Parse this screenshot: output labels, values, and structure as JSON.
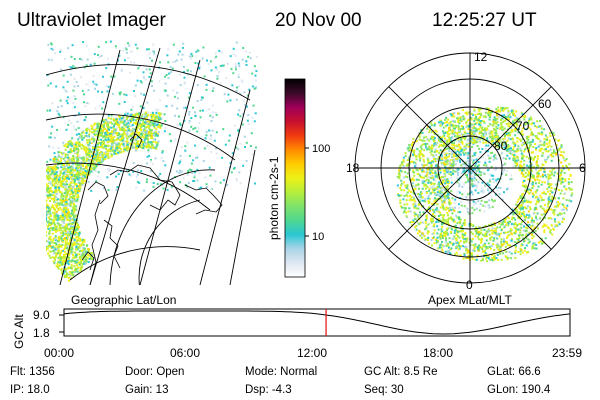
{
  "header": {
    "instrument": "Ultraviolet Imager",
    "date": "20 Nov 00",
    "time": "12:25:27 UT"
  },
  "colorbar": {
    "unit_label": "photon cm-2s-1",
    "ticks": [
      "100",
      "10"
    ],
    "scale": "log",
    "range": [
      2,
      1000
    ],
    "gradient": [
      "#ffffff",
      "#dfe8f2",
      "#a9d4e6",
      "#2bc7d4",
      "#4fd78f",
      "#7fe36b",
      "#b6ee3a",
      "#eef018",
      "#ffcc00",
      "#ff8a00",
      "#f03a10",
      "#c8102e",
      "#a0005a",
      "#3a0a2a",
      "#000000"
    ]
  },
  "geo_map": {
    "label": "Geographic Lat/Lon"
  },
  "apex_map": {
    "label": "Apex MLat/MLT",
    "mlt_labels": [
      "12",
      "18",
      "6",
      "0"
    ],
    "lat_labels": [
      "60",
      "70",
      "80"
    ]
  },
  "timeline": {
    "ylabel": "GC Alt",
    "y_ticks": [
      "9.0",
      "1.8"
    ],
    "x_ticks": [
      "00:00",
      "06:00",
      "12:00",
      "18:00",
      "23:59"
    ],
    "current_hour": 12.43,
    "colors": {
      "marker": "#e01010",
      "curve": "#000000"
    }
  },
  "status": {
    "flt": "Flt: 1356",
    "door": "Door: Open",
    "mode": "Mode: Normal",
    "gc_alt": "GC Alt: 8.5 Re",
    "glat": "GLat:  66.6",
    "ip": "IP: 18.0",
    "gain": "Gain: 13",
    "dsp": "Dsp:   -4.3",
    "seq": "Seq: 30",
    "glon": "GLon: 190.4"
  },
  "colors": {
    "background": "#ffffff",
    "text": "#000000"
  }
}
